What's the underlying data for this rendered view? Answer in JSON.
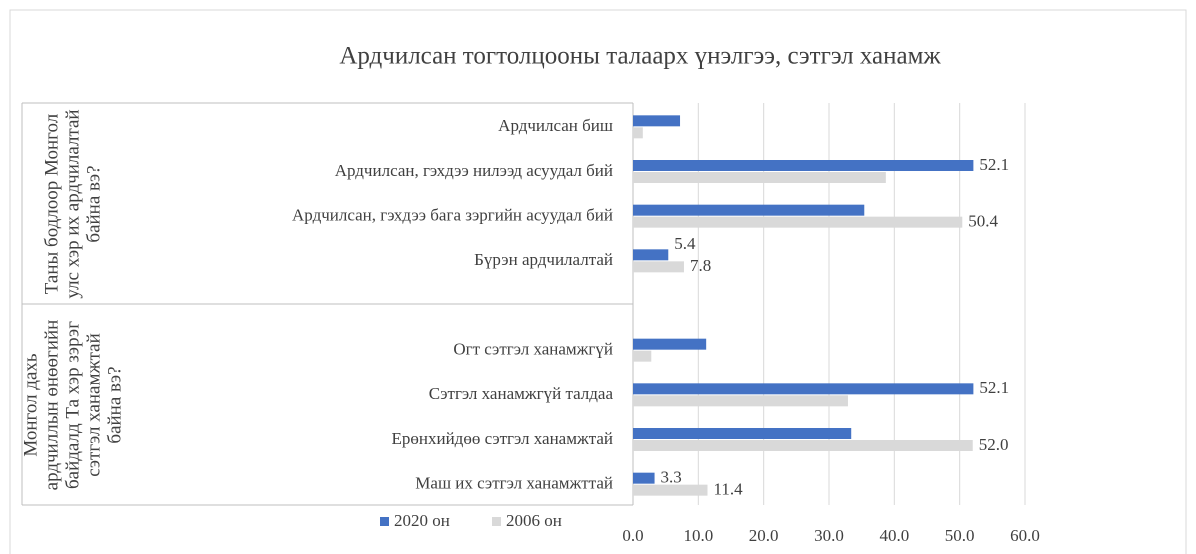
{
  "chart_data": {
    "type": "bar",
    "orientation": "horizontal",
    "title": "Ардчилсан тогтолцооны талаарх үнэлгээ, сэтгэл ханамж",
    "group_labels": [
      "Таны бодлоор Монгол улс хэр их ардчилалтай байна вэ?",
      "Монгол дахь ардчиллын өнөөгийн байдалд Та хэр зэрэг сэтгэл ханамжтай байна вэ?"
    ],
    "categories": [
      "Ардчилсан биш",
      "Ардчилсан, гэхдээ нилээд асуудал бий",
      "Ардчилсан, гэхдээ бага зэргийн асуудал бий",
      "Бүрэн ардчилалтай",
      null,
      "Огт сэтгэл ханамжгүй",
      "Сэтгэл ханамжгүй талдаа",
      "Ерөнхийдөө сэтгэл ханамжтай",
      "Маш их сэтгэл ханамжттай"
    ],
    "series": [
      {
        "name": "2020 он",
        "color": "#4472c4",
        "values": [
          7.2,
          52.1,
          35.4,
          5.4,
          null,
          11.2,
          52.1,
          33.4,
          3.3
        ],
        "value_labels": [
          null,
          "52.1",
          null,
          "5.4",
          null,
          null,
          "52.1",
          null,
          "3.3"
        ]
      },
      {
        "name": "2006 он",
        "color": "#d9d9d9",
        "values": [
          1.5,
          38.7,
          50.4,
          7.8,
          null,
          2.8,
          32.9,
          52.0,
          11.4
        ],
        "value_labels": [
          null,
          null,
          "50.4",
          "7.8",
          null,
          null,
          null,
          "52.0",
          "11.4"
        ]
      }
    ],
    "xlim": [
      0,
      60
    ],
    "xticks": [
      {
        "value": 0,
        "label": "0.0"
      },
      {
        "value": 10,
        "label": "10.0"
      },
      {
        "value": 20,
        "label": "20.0"
      },
      {
        "value": 30,
        "label": "30.0"
      },
      {
        "value": 40,
        "label": "40.0"
      },
      {
        "value": 50,
        "label": "50.0"
      },
      {
        "value": 60,
        "label": "60.0"
      }
    ],
    "grid": true,
    "legend": "bottom"
  }
}
